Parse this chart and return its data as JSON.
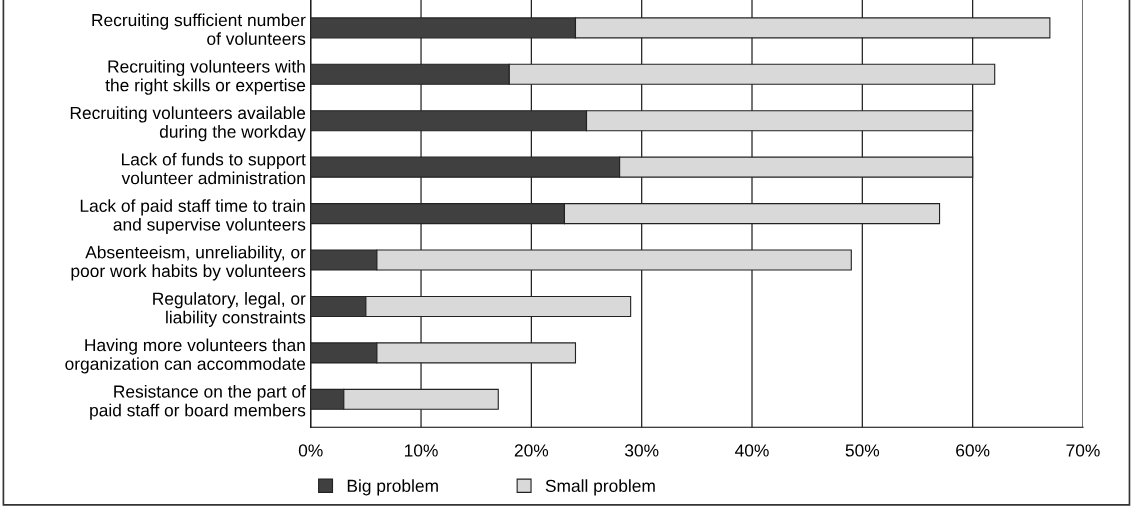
{
  "chart_data": {
    "type": "bar",
    "orientation": "horizontal",
    "stacked": true,
    "categories": [
      "Recruiting sufficient number\nof volunteers",
      "Recruiting volunteers with\nthe right skills or expertise",
      "Recruiting volunteers available\nduring the workday",
      "Lack of funds to support\nvolunteer administration",
      "Lack of paid staff time to train\nand supervise volunteers",
      "Absenteeism, unreliability, or\npoor work habits by volunteers",
      "Regulatory, legal, or\nliability constraints",
      "Having more volunteers than\norganization can accommodate",
      "Resistance on the part of\npaid staff or board members"
    ],
    "series": [
      {
        "name": "Big problem",
        "color": "#404040",
        "values": [
          24,
          18,
          25,
          28,
          23,
          6,
          5,
          6,
          3
        ]
      },
      {
        "name": "Small problem",
        "color": "#d9d9d9",
        "values": [
          43,
          44,
          35,
          32,
          34,
          43,
          24,
          18,
          14
        ]
      }
    ],
    "xlim": [
      0,
      70
    ],
    "xticks": [
      {
        "value": 0,
        "label": "0%"
      },
      {
        "value": 10,
        "label": "10%"
      },
      {
        "value": 20,
        "label": "20%"
      },
      {
        "value": 30,
        "label": "30%"
      },
      {
        "value": 40,
        "label": "40%"
      },
      {
        "value": 50,
        "label": "50%"
      },
      {
        "value": 60,
        "label": "60%"
      },
      {
        "value": 70,
        "label": "70%"
      }
    ],
    "grid": "x",
    "legend": "bottom left"
  }
}
